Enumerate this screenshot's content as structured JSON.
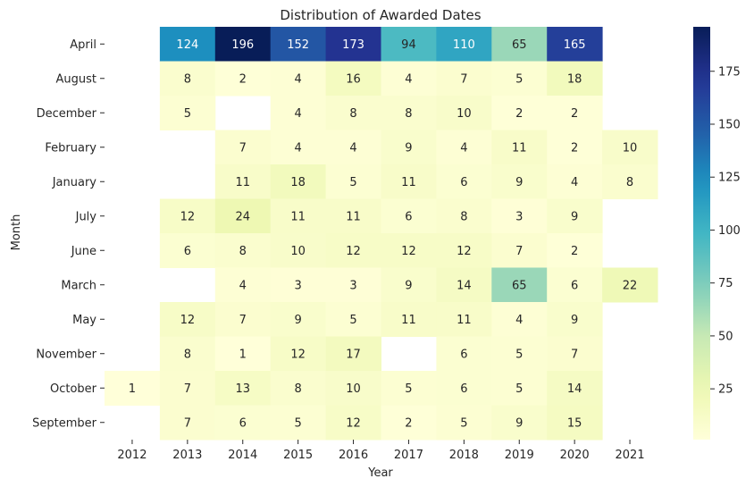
{
  "chart_data": {
    "type": "heatmap",
    "title": "Distribution of Awarded Dates",
    "xlabel": "Year",
    "ylabel": "Month",
    "x": [
      "2012",
      "2013",
      "2014",
      "2015",
      "2016",
      "2017",
      "2018",
      "2019",
      "2020",
      "2021"
    ],
    "y": [
      "April",
      "August",
      "December",
      "February",
      "January",
      "July",
      "June",
      "March",
      "May",
      "November",
      "October",
      "September"
    ],
    "values": [
      [
        null,
        124,
        196,
        152,
        173,
        94,
        110,
        65,
        165,
        null
      ],
      [
        null,
        8,
        2,
        4,
        16,
        4,
        7,
        5,
        18,
        null
      ],
      [
        null,
        5,
        null,
        4,
        8,
        8,
        10,
        2,
        2,
        null
      ],
      [
        null,
        null,
        7,
        4,
        4,
        9,
        4,
        11,
        2,
        10
      ],
      [
        null,
        null,
        11,
        18,
        5,
        11,
        6,
        9,
        4,
        8
      ],
      [
        null,
        12,
        24,
        11,
        11,
        6,
        8,
        3,
        9,
        null
      ],
      [
        null,
        6,
        8,
        10,
        12,
        12,
        12,
        7,
        2,
        null
      ],
      [
        null,
        null,
        4,
        3,
        3,
        9,
        14,
        65,
        6,
        22
      ],
      [
        null,
        12,
        7,
        9,
        5,
        11,
        11,
        4,
        9,
        null
      ],
      [
        null,
        8,
        1,
        12,
        17,
        null,
        6,
        5,
        7,
        null
      ],
      [
        1,
        7,
        13,
        8,
        10,
        5,
        6,
        5,
        14,
        null
      ],
      [
        null,
        7,
        6,
        5,
        12,
        2,
        5,
        9,
        15,
        null
      ]
    ],
    "colormap": "YlGnBu",
    "vmin": 1,
    "vmax": 196,
    "colorbar_ticks": [
      25,
      50,
      75,
      100,
      125,
      150,
      175
    ],
    "grid": false,
    "legend": "colorbar-right"
  }
}
